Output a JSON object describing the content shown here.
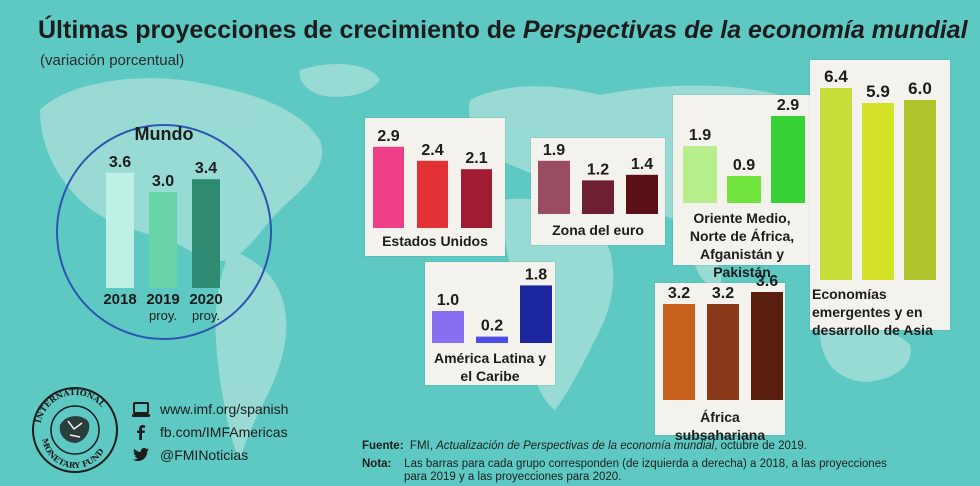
{
  "header": {
    "title_plain": "Últimas proyecciones de crecimiento de ",
    "title_italic": "Perspectivas de la economía mundial",
    "subtitle": "(variación porcentual)"
  },
  "chart_data": [
    {
      "type": "bar",
      "title": "Mundo",
      "categories": [
        "2018",
        "2019",
        "2020"
      ],
      "category_sublabels": [
        "",
        "proy.",
        "proy."
      ],
      "values": [
        3.6,
        3.0,
        3.4
      ],
      "colors": [
        "#bff0e6",
        "#69d3a8",
        "#2f8a72"
      ]
    },
    {
      "type": "bar",
      "title": "Estados Unidos",
      "values": [
        2.9,
        2.4,
        2.1
      ],
      "colors": [
        "#ef3f86",
        "#e23236",
        "#a11c33"
      ]
    },
    {
      "type": "bar",
      "title": "Zona del euro",
      "values": [
        1.9,
        1.2,
        1.4
      ],
      "colors": [
        "#9a4c63",
        "#6e2030",
        "#5a1016"
      ]
    },
    {
      "type": "bar",
      "title": "Oriente Medio, Norte de África, Afganistán y Pakistán",
      "values": [
        1.9,
        0.9,
        2.9
      ],
      "colors": [
        "#b8ef8d",
        "#70e33c",
        "#36d135"
      ]
    },
    {
      "type": "bar",
      "title": "América Latina y el Caribe",
      "values": [
        1.0,
        0.2,
        1.8
      ],
      "colors": [
        "#8a6ef2",
        "#4b4de6",
        "#1c279f"
      ]
    },
    {
      "type": "bar",
      "title": "África subsahariana",
      "values": [
        3.2,
        3.2,
        3.6
      ],
      "colors": [
        "#c8601e",
        "#8a3a1a",
        "#5a1f0e"
      ]
    },
    {
      "type": "bar",
      "title": "Economías emergentes y en desarrollo de Asia",
      "values": [
        6.4,
        5.9,
        6.0
      ],
      "colors": [
        "#c8dc3a",
        "#d4e22a",
        "#b0c52d"
      ]
    }
  ],
  "footer": {
    "website": "www.imf.org/spanish",
    "facebook": "fb.com/IMFAmericas",
    "twitter": "@FMINoticias",
    "logo_text": "INTERNATIONAL MONETARY FUND",
    "source_label": "Fuente:",
    "source_text_plain": "FMI, ",
    "source_text_italic": "Actualización de Perspectivas de la economía mundial",
    "source_text_end": ", octubre de 2019.",
    "note_label": "Nota:",
    "note_text_line1": "Las barras para cada grupo corresponden (de izquierda a derecha) a 2018, a las proyecciones",
    "note_text_line2": "para 2019 y a las proyecciones para 2020."
  },
  "colors": {
    "background": "#5ec9c3",
    "map_land": "#a4ddd8",
    "panel": "#f4f2ec",
    "ring": "#2c56b0"
  }
}
